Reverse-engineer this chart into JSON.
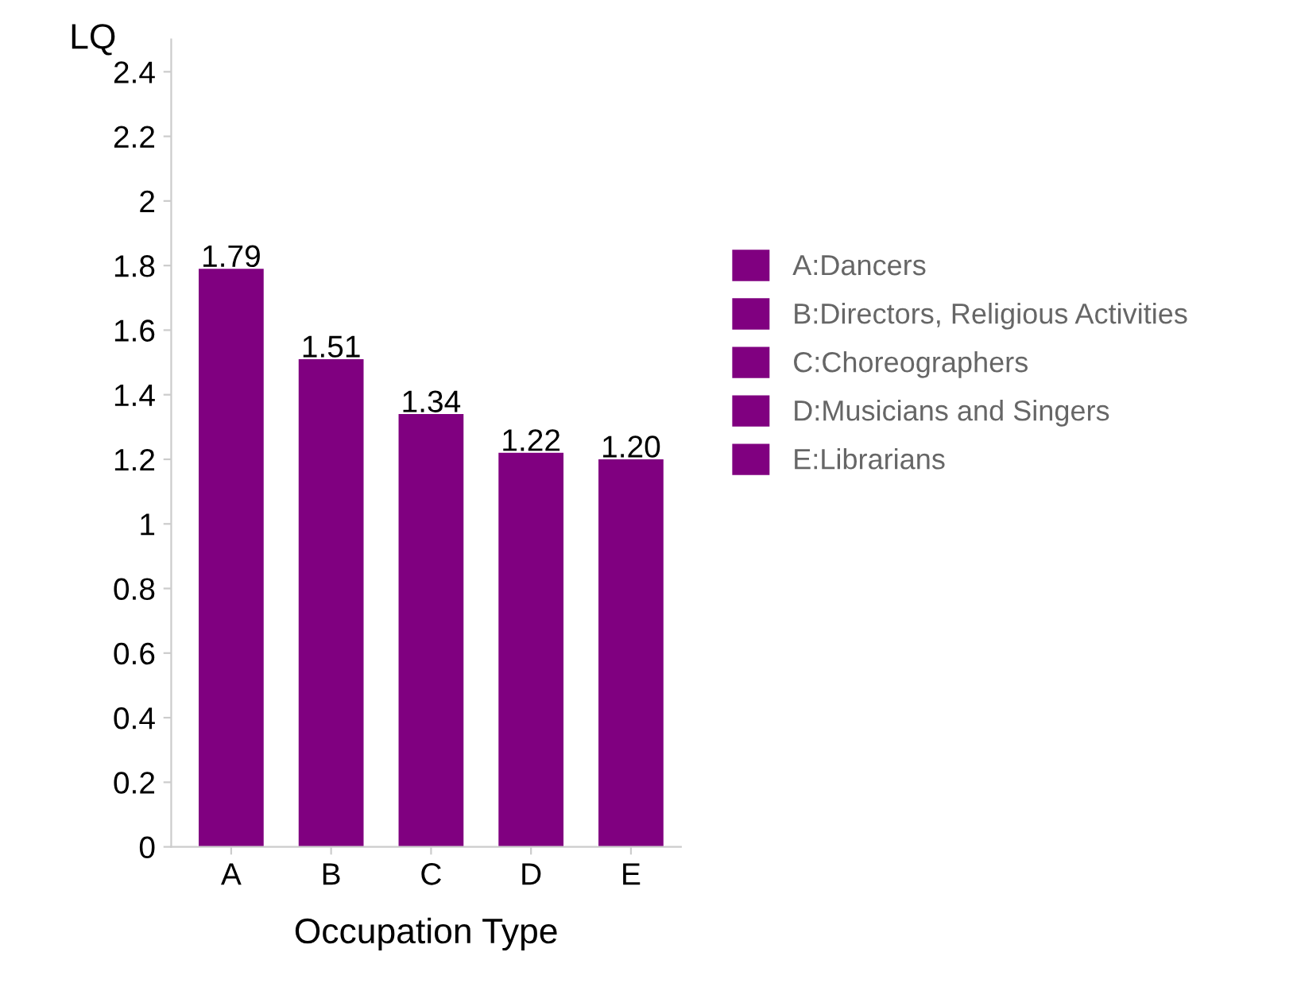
{
  "chart_data": {
    "type": "bar",
    "xlabel": "Occupation Type",
    "ylabel": "LQ",
    "categories": [
      "A",
      "B",
      "C",
      "D",
      "E"
    ],
    "series": [
      {
        "name": "A:Dancers",
        "color": "#800080",
        "values": [
          1.79,
          null,
          null,
          null,
          null
        ],
        "value_labels": [
          "1.79",
          null,
          null,
          null,
          null
        ]
      },
      {
        "name": "B:Directors, Religious Activities",
        "color": "#800080",
        "values": [
          null,
          1.51,
          null,
          null,
          null
        ],
        "value_labels": [
          null,
          "1.51",
          null,
          null,
          null
        ]
      },
      {
        "name": "C:Choreographers",
        "color": "#800080",
        "values": [
          null,
          null,
          1.34,
          null,
          null
        ],
        "value_labels": [
          null,
          null,
          "1.34",
          null,
          null
        ]
      },
      {
        "name": "D:Musicians and Singers",
        "color": "#800080",
        "values": [
          null,
          null,
          null,
          1.22,
          null
        ],
        "value_labels": [
          null,
          null,
          null,
          "1.22",
          null
        ]
      },
      {
        "name": "E:Librarians",
        "color": "#800080",
        "values": [
          null,
          null,
          null,
          null,
          1.2
        ],
        "value_labels": [
          null,
          null,
          null,
          null,
          "1.20"
        ]
      }
    ],
    "ylim": [
      0,
      2.5
    ],
    "yticks": [
      0,
      {
        "value": 0.2,
        "label": "0.2"
      },
      {
        "value": 0.4,
        "label": "0.4"
      },
      {
        "value": 0.6,
        "label": "0.6"
      },
      {
        "value": 0.8,
        "label": "0.8"
      },
      1,
      {
        "value": 1.2,
        "label": "1.2"
      },
      {
        "value": 1.4,
        "label": "1.4"
      },
      {
        "value": 1.6,
        "label": "1.6"
      },
      {
        "value": 1.8,
        "label": "1.8"
      },
      2,
      {
        "value": 2.2,
        "label": "2.2"
      },
      {
        "value": 2.4,
        "label": "2.4"
      }
    ],
    "grid": false,
    "legend": "right"
  }
}
